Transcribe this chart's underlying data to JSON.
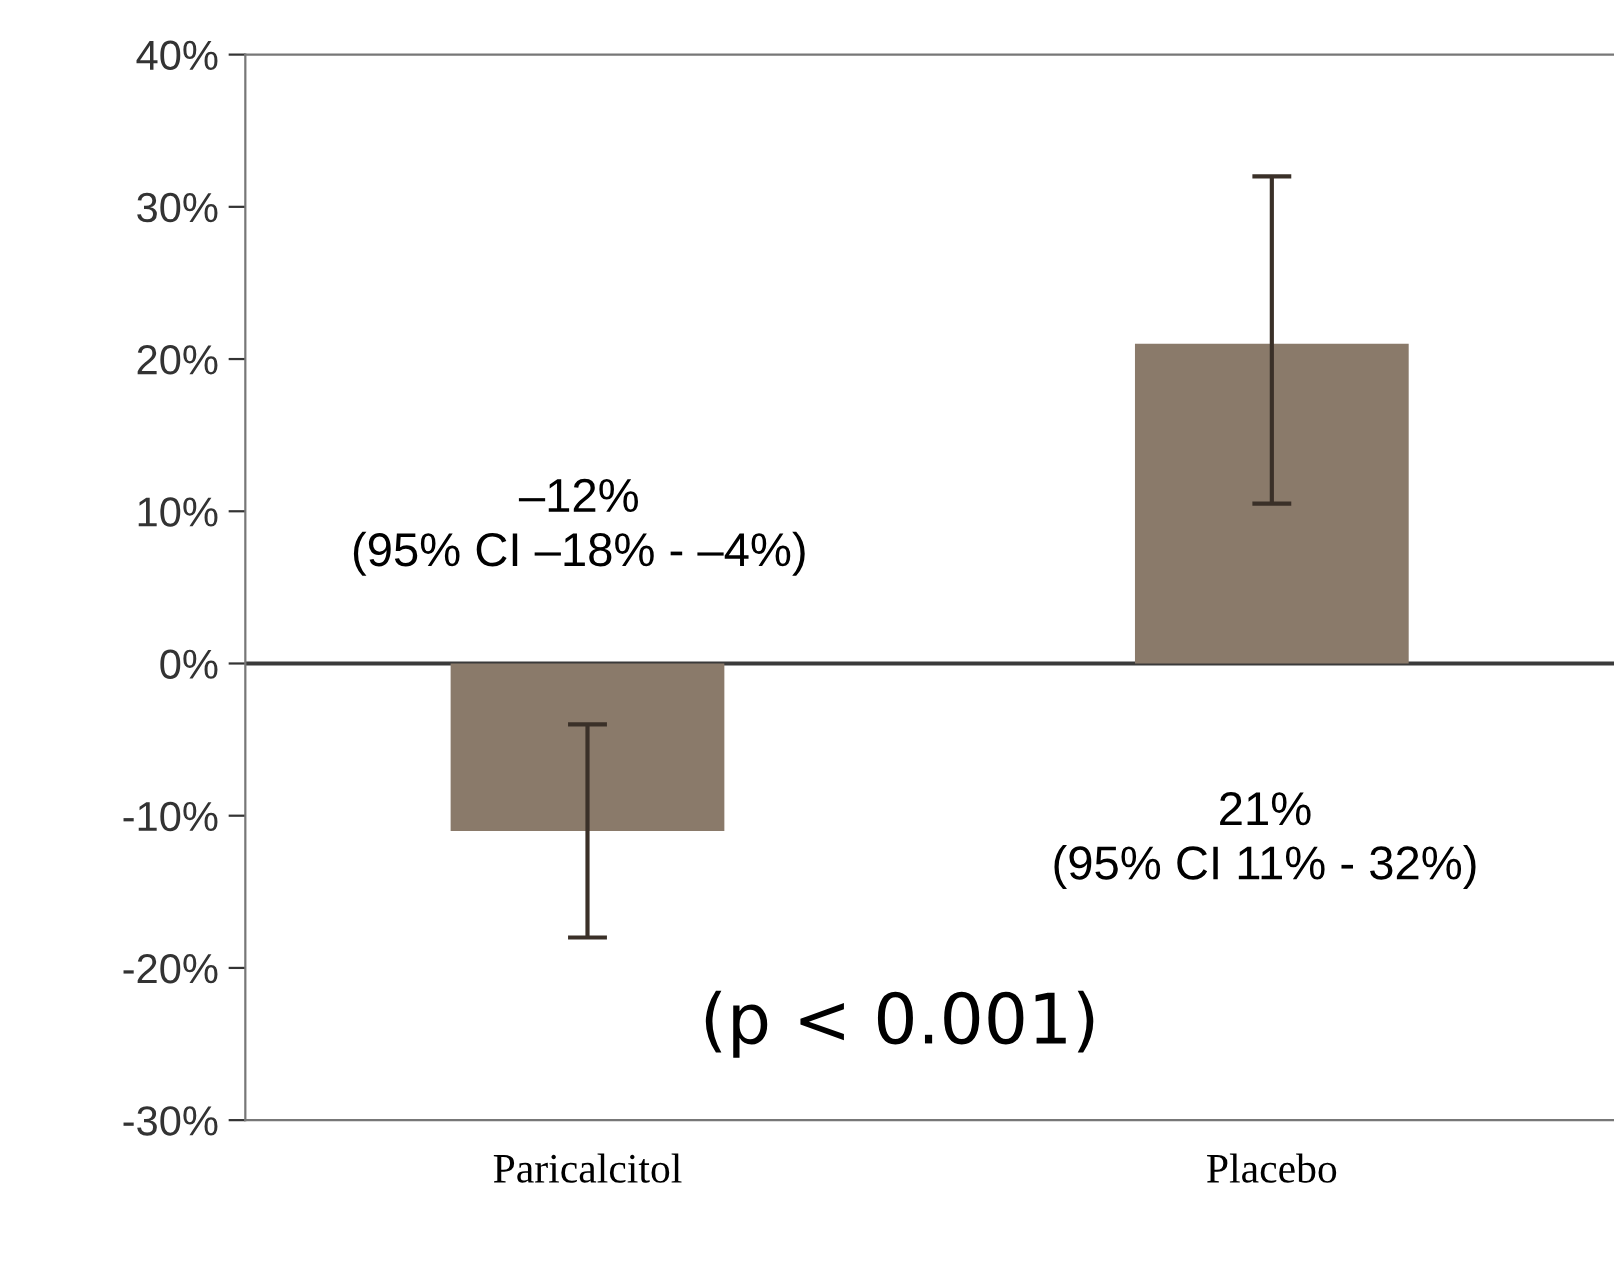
{
  "chart_data": {
    "type": "bar",
    "categories": [
      "Paricalcitol",
      "Placebo"
    ],
    "values": [
      -11,
      21
    ],
    "errors": [
      [
        -18,
        -4
      ],
      [
        10.5,
        32
      ]
    ],
    "color": "#8a7a6a",
    "ylim": [
      -30,
      40
    ],
    "yticks": [
      {
        "value": -30,
        "label": "-30%"
      },
      {
        "value": -20,
        "label": "-20%"
      },
      {
        "value": -10,
        "label": "-10%"
      },
      {
        "value": 0,
        "label": "0%"
      },
      {
        "value": 10,
        "label": "10%"
      },
      {
        "value": 20,
        "label": "20%"
      },
      {
        "value": 30,
        "label": "30%"
      },
      {
        "value": 40,
        "label": "40%"
      }
    ],
    "annotations": [
      "–12%\n(95% CI –18% - –4%)",
      "21%\n(95% CI 11% - 32%)",
      "(p < 0.001)"
    ],
    "ref_lines": [
      {
        "axis": "y",
        "value": 0,
        "color": "#3a3a3a"
      }
    ]
  }
}
